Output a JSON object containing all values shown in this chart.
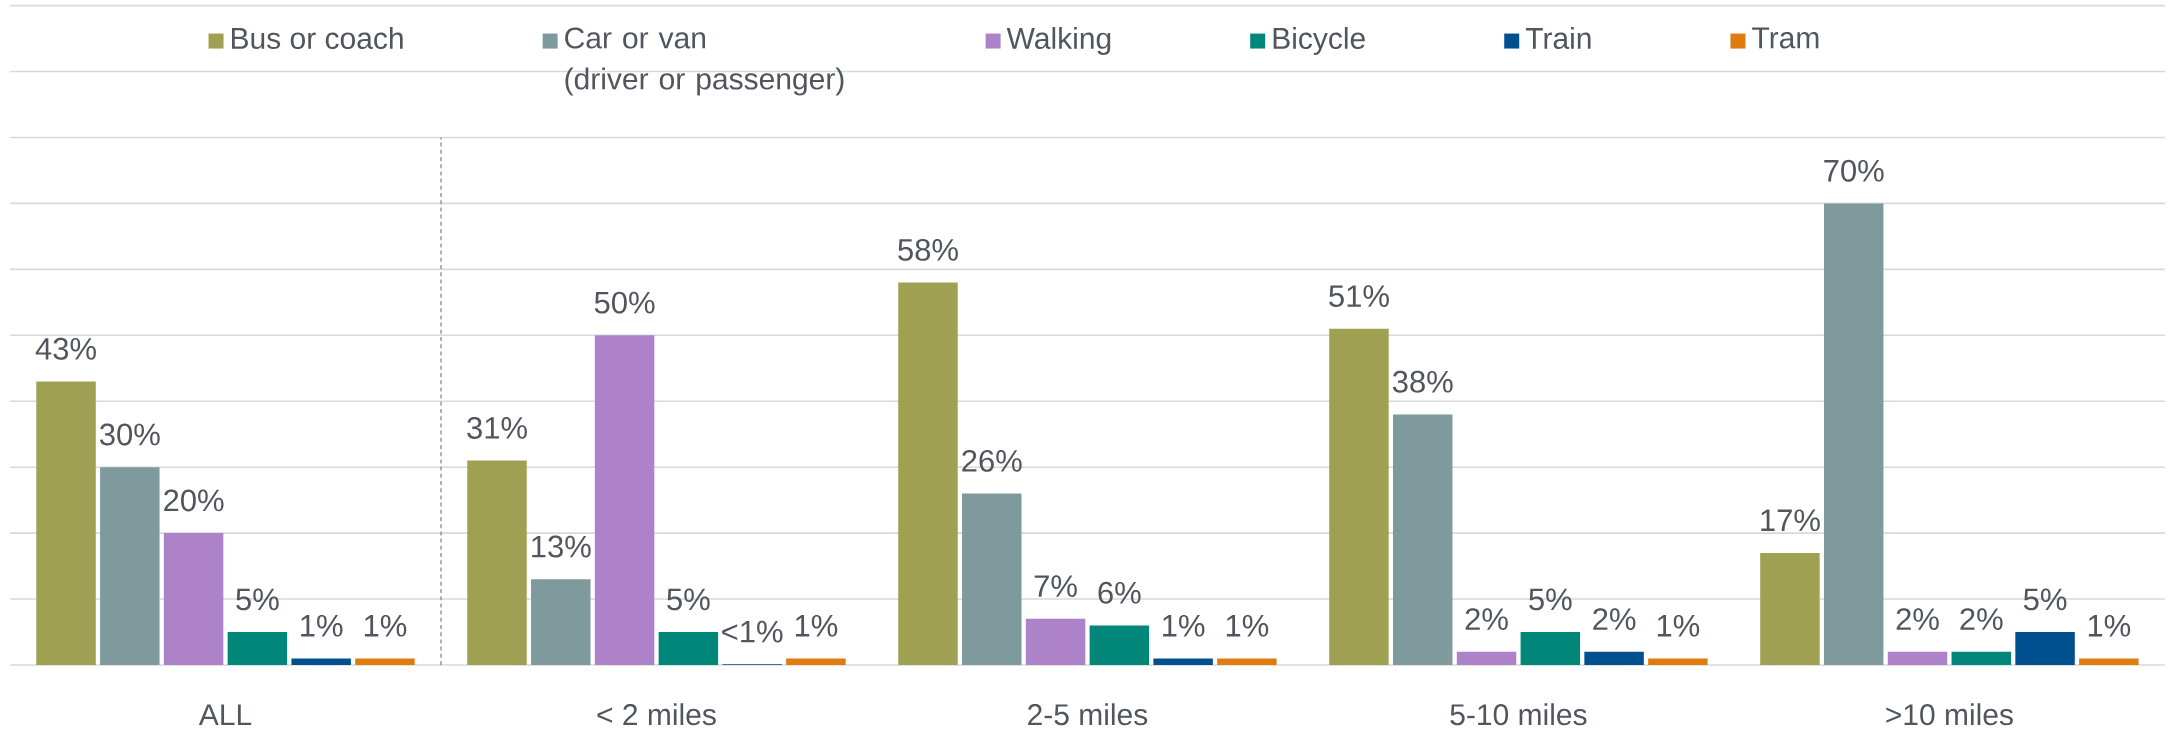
{
  "chart_data": {
    "type": "bar",
    "categories": [
      "ALL",
      "< 2 miles",
      "2-5 miles",
      "5-10 miles",
      ">10 miles"
    ],
    "series": [
      {
        "name": "Bus or coach",
        "color": "#9fa052",
        "values": [
          43,
          31,
          58,
          51,
          17
        ],
        "value_labels": [
          "43%",
          "31%",
          "58%",
          "51%",
          "17%"
        ]
      },
      {
        "name": "Car or van (driver or passenger)",
        "color": "#7f9a9d",
        "values": [
          30,
          13,
          26,
          38,
          70
        ],
        "value_labels": [
          "30%",
          "13%",
          "26%",
          "38%",
          "70%"
        ]
      },
      {
        "name": "Walking",
        "color": "#ae82c9",
        "values": [
          20,
          50,
          7,
          2,
          2
        ],
        "value_labels": [
          "20%",
          "50%",
          "7%",
          "2%",
          "2%"
        ]
      },
      {
        "name": "Bicycle",
        "color": "#00877a",
        "values": [
          5,
          5,
          6,
          5,
          2
        ],
        "value_labels": [
          "5%",
          "5%",
          "6%",
          "5%",
          "2%"
        ]
      },
      {
        "name": "Train",
        "color": "#00508f",
        "values": [
          1,
          0.1,
          1,
          2,
          5
        ],
        "value_labels": [
          "1%",
          "<1%",
          "1%",
          "2%",
          "5%"
        ]
      },
      {
        "name": "Tram",
        "color": "#e07b10",
        "values": [
          1,
          1,
          1,
          1,
          1
        ],
        "value_labels": [
          "1%",
          "1%",
          "1%",
          "1%",
          "1%"
        ]
      }
    ],
    "ylim": [
      0,
      100
    ],
    "yticks": [
      {
        "value": 0,
        "label": null
      },
      {
        "value": 10,
        "label": null
      },
      {
        "value": 20,
        "label": null
      },
      {
        "value": 30,
        "label": null
      },
      {
        "value": 40,
        "label": null
      },
      {
        "value": 50,
        "label": null
      },
      {
        "value": 60,
        "label": null
      },
      {
        "value": 70,
        "label": null
      },
      {
        "value": 80,
        "label": null
      },
      {
        "value": 90,
        "label": null
      },
      {
        "value": 100,
        "label": null
      }
    ],
    "grid": "y",
    "legend": "top",
    "tick_labels": "x"
  }
}
